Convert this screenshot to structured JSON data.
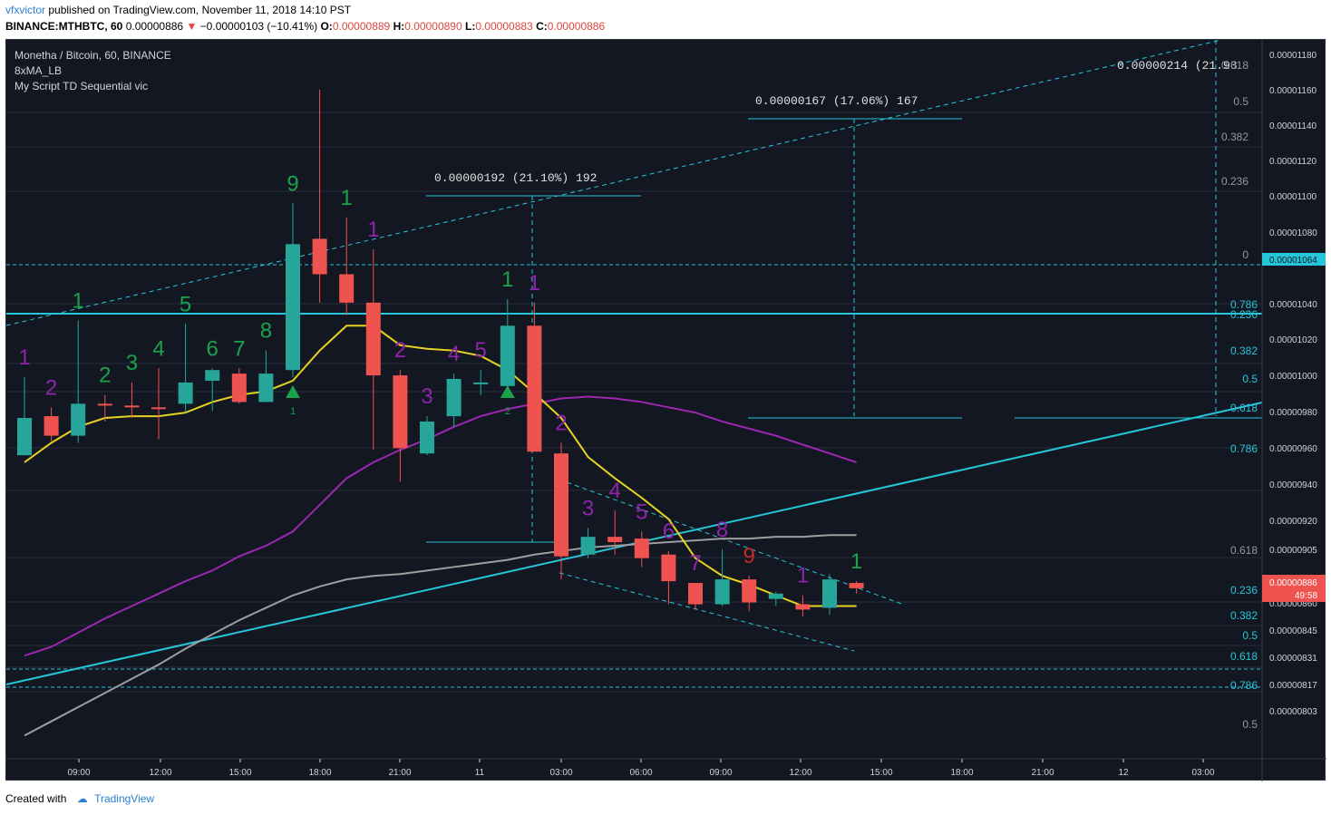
{
  "header": {
    "author": "vfxvictor",
    "published_text": "published on TradingView.com, November 11, 2018 14:10 PST",
    "symbol_line": "BINANCE:MTHBTC, 60",
    "last_price": "0.00000886",
    "change": "−0.00000103 (−10.41%)",
    "open_label": "O:",
    "open": "0.00000889",
    "high_label": "H:",
    "high": "0.00000890",
    "low_label": "L:",
    "low": "0.00000883",
    "close_label": "C:",
    "close": "0.00000886"
  },
  "legend": {
    "title": "Monetha / Bitcoin, 60, BINANCE",
    "indicator1": "8xMA_LB",
    "indicator2": "My Script TD Sequential vic"
  },
  "footer": {
    "created_with": "Created with",
    "brand": "TradingView"
  },
  "colors": {
    "background": "#131722",
    "up": "#26a69a",
    "down": "#ef5350",
    "cyan": "#26c6da",
    "ma_yellow": "#e6d321",
    "ma_purple": "#9c27b0",
    "ma_gray": "#9e9e9e",
    "td_green": "#1aa34a",
    "td_purple": "#8e24aa",
    "td_red": "#c62828"
  },
  "chart_data": {
    "type": "candlestick",
    "timeframe": "60",
    "x_tick_labels": [
      "09:00",
      "12:00",
      "15:00",
      "18:00",
      "21:00",
      "11",
      "03:00",
      "06:00",
      "09:00",
      "12:00",
      "15:00",
      "18:00",
      "21:00",
      "12",
      "03:00"
    ],
    "y_tick_labels": [
      "0.00001180",
      "0.00001160",
      "0.00001140",
      "0.00001120",
      "0.00001100",
      "0.00001080",
      "0.00001064",
      "0.00001040",
      "0.00001020",
      "0.00001000",
      "0.00000980",
      "0.00000960",
      "0.00000940",
      "0.00000920",
      "0.00000905",
      "0.00000886",
      "0.00000860",
      "0.00000845",
      "0.00000831",
      "0.00000817",
      "0.00000803"
    ],
    "ylim": [
      7.95e-06,
      1.19e-05
    ],
    "price_label": "0.00000886",
    "countdown": "49:58",
    "level_label": "0.00001064",
    "candles": [
      {
        "o": 9.61e-06,
        "h": 1.005e-05,
        "l": 9.61e-06,
        "c": 9.82e-06
      },
      {
        "o": 9.83e-06,
        "h": 9.88e-06,
        "l": 9.69e-06,
        "c": 9.72e-06
      },
      {
        "o": 9.72e-06,
        "h": 1.037e-05,
        "l": 9.68e-06,
        "c": 9.9e-06
      },
      {
        "o": 9.9e-06,
        "h": 9.95e-06,
        "l": 9.8e-06,
        "c": 9.89e-06
      },
      {
        "o": 9.89e-06,
        "h": 1.002e-05,
        "l": 9.82e-06,
        "c": 9.88e-06
      },
      {
        "o": 9.88e-06,
        "h": 1.01e-05,
        "l": 9.7e-06,
        "c": 9.87e-06
      },
      {
        "o": 9.9e-06,
        "h": 1.035e-05,
        "l": 9.85e-06,
        "c": 1.002e-05
      },
      {
        "o": 1.003e-05,
        "h": 1.01e-05,
        "l": 9.86e-06,
        "c": 1.009e-05
      },
      {
        "o": 1.007e-05,
        "h": 1.01e-05,
        "l": 9.9e-06,
        "c": 9.91e-06
      },
      {
        "o": 9.91e-06,
        "h": 1.02e-05,
        "l": 9.91e-06,
        "c": 1.007e-05
      },
      {
        "o": 1.009e-05,
        "h": 1.103e-05,
        "l": 1.005e-05,
        "c": 1.08e-05
      },
      {
        "o": 1.083e-05,
        "h": 1.167e-05,
        "l": 1.047e-05,
        "c": 1.063e-05
      },
      {
        "o": 1.063e-05,
        "h": 1.095e-05,
        "l": 1.04e-05,
        "c": 1.047e-05
      },
      {
        "o": 1.047e-05,
        "h": 1.077e-05,
        "l": 9.64e-06,
        "c": 1.006e-05
      },
      {
        "o": 1.006e-05,
        "h": 1.009e-05,
        "l": 9.46e-06,
        "c": 9.65e-06
      },
      {
        "o": 9.62e-06,
        "h": 9.83e-06,
        "l": 9.61e-06,
        "c": 9.8e-06
      },
      {
        "o": 9.83e-06,
        "h": 1.007e-05,
        "l": 9.77e-06,
        "c": 1.004e-05
      },
      {
        "o": 1.002e-05,
        "h": 1.009e-05,
        "l": 9.95e-06,
        "c": 1.002e-05
      },
      {
        "o": 1e-05,
        "h": 1.049e-05,
        "l": 9.98e-06,
        "c": 1.034e-05
      },
      {
        "o": 1.034e-05,
        "h": 1.047e-05,
        "l": 9.63e-06,
        "c": 9.63e-06
      },
      {
        "o": 9.62e-06,
        "h": 9.68e-06,
        "l": 8.91e-06,
        "c": 9.04e-06
      },
      {
        "o": 9.05e-06,
        "h": 9.2e-06,
        "l": 9.03e-06,
        "c": 9.15e-06
      },
      {
        "o": 9.15e-06,
        "h": 9.3e-06,
        "l": 9.05e-06,
        "c": 9.12e-06
      },
      {
        "o": 9.14e-06,
        "h": 9.18e-06,
        "l": 8.98e-06,
        "c": 9.03e-06
      },
      {
        "o": 9.05e-06,
        "h": 9.07e-06,
        "l": 8.77e-06,
        "c": 8.9e-06
      },
      {
        "o": 8.89e-06,
        "h": 8.89e-06,
        "l": 8.74e-06,
        "c": 8.77e-06
      },
      {
        "o": 8.77e-06,
        "h": 9.08e-06,
        "l": 8.76e-06,
        "c": 8.91e-06
      },
      {
        "o": 8.91e-06,
        "h": 8.93e-06,
        "l": 8.73e-06,
        "c": 8.78e-06
      },
      {
        "o": 8.8e-06,
        "h": 8.84e-06,
        "l": 8.76e-06,
        "c": 8.83e-06
      },
      {
        "o": 8.77e-06,
        "h": 8.82e-06,
        "l": 8.7e-06,
        "c": 8.74e-06
      },
      {
        "o": 8.75e-06,
        "h": 8.94e-06,
        "l": 8.71e-06,
        "c": 8.91e-06
      },
      {
        "o": 8.89e-06,
        "h": 8.9e-06,
        "l": 8.83e-06,
        "c": 8.86e-06
      }
    ],
    "ma_yellow": [
      9.57e-06,
      9.68e-06,
      9.77e-06,
      9.82e-06,
      9.83e-06,
      9.83e-06,
      9.85e-06,
      9.91e-06,
      9.95e-06,
      9.97e-06,
      1.003e-05,
      1.02e-05,
      1.034e-05,
      1.034e-05,
      1.023e-05,
      1.021e-05,
      1.02e-05,
      1.017e-05,
      1.009e-05,
      9.96e-06,
      9.82e-06,
      9.6e-06,
      9.48e-06,
      9.37e-06,
      9.25e-06,
      9.03e-06,
      8.93e-06,
      8.88e-06,
      8.82e-06,
      8.76e-06,
      8.76e-06,
      8.76e-06
    ],
    "ma_purple": [
      8.48e-06,
      8.53e-06,
      8.61e-06,
      8.69e-06,
      8.76e-06,
      8.83e-06,
      8.9e-06,
      8.96e-06,
      9.04e-06,
      9.1e-06,
      9.18e-06,
      9.33e-06,
      9.48e-06,
      9.57e-06,
      9.64e-06,
      9.7e-06,
      9.77e-06,
      9.83e-06,
      9.87e-06,
      9.9e-06,
      9.93e-06,
      9.94e-06,
      9.93e-06,
      9.91e-06,
      9.88e-06,
      9.85e-06,
      9.8e-06,
      9.76e-06,
      9.72e-06,
      9.67e-06,
      9.62e-06,
      9.57e-06
    ],
    "ma_gray": [
      8.03e-06,
      8.11e-06,
      8.19e-06,
      8.27e-06,
      8.35e-06,
      8.43e-06,
      8.52e-06,
      8.6e-06,
      8.68e-06,
      8.75e-06,
      8.82e-06,
      8.87e-06,
      8.91e-06,
      8.93e-06,
      8.94e-06,
      8.96e-06,
      8.98e-06,
      9e-06,
      9.02e-06,
      9.05e-06,
      9.07e-06,
      9.09e-06,
      9.1e-06,
      9.11e-06,
      9.12e-06,
      9.13e-06,
      9.14e-06,
      9.14e-06,
      9.15e-06,
      9.15e-06,
      9.16e-06,
      9.16e-06
    ],
    "td_counts": [
      {
        "i": 0,
        "label": "1",
        "color": "purple",
        "pos": "above"
      },
      {
        "i": 1,
        "label": "2",
        "color": "purple",
        "pos": "above"
      },
      {
        "i": 2,
        "label": "1",
        "color": "green",
        "pos": "above"
      },
      {
        "i": 3,
        "label": "2",
        "color": "green",
        "pos": "above"
      },
      {
        "i": 4,
        "label": "3",
        "color": "green",
        "pos": "above"
      },
      {
        "i": 5,
        "label": "4",
        "color": "green",
        "pos": "above"
      },
      {
        "i": 6,
        "label": "5",
        "color": "green",
        "pos": "above"
      },
      {
        "i": 7,
        "label": "6",
        "color": "green",
        "pos": "above"
      },
      {
        "i": 8,
        "label": "7",
        "color": "green",
        "pos": "above"
      },
      {
        "i": 9,
        "label": "8",
        "color": "green",
        "pos": "above"
      },
      {
        "i": 10,
        "label": "9",
        "color": "green",
        "pos": "above"
      },
      {
        "i": 12,
        "label": "1",
        "color": "green",
        "pos": "above"
      },
      {
        "i": 13,
        "label": "1",
        "color": "purple",
        "pos": "above"
      },
      {
        "i": 14,
        "label": "2",
        "color": "purple",
        "pos": "above"
      },
      {
        "i": 15,
        "label": "3",
        "color": "purple",
        "pos": "above"
      },
      {
        "i": 16,
        "label": "4",
        "color": "purple",
        "pos": "above"
      },
      {
        "i": 17,
        "label": "5",
        "color": "purple",
        "pos": "above"
      },
      {
        "i": 18,
        "label": "1",
        "color": "green",
        "pos": "above"
      },
      {
        "i": 19,
        "label": "1",
        "color": "purple",
        "pos": "above"
      },
      {
        "i": 20,
        "label": "2",
        "color": "purple",
        "pos": "above"
      },
      {
        "i": 21,
        "label": "3",
        "color": "purple",
        "pos": "above"
      },
      {
        "i": 22,
        "label": "4",
        "color": "purple",
        "pos": "above"
      },
      {
        "i": 23,
        "label": "5",
        "color": "purple",
        "pos": "above"
      },
      {
        "i": 24,
        "label": "6",
        "color": "purple",
        "pos": "above"
      },
      {
        "i": 25,
        "label": "7",
        "color": "purple",
        "pos": "above"
      },
      {
        "i": 26,
        "label": "8",
        "color": "purple",
        "pos": "above"
      },
      {
        "i": 27,
        "label": "9",
        "color": "red",
        "pos": "above"
      },
      {
        "i": 29,
        "label": "1",
        "color": "purple",
        "pos": "above"
      },
      {
        "i": 31,
        "label": "1",
        "color": "green",
        "pos": "above"
      }
    ],
    "setup_markers": [
      {
        "i": 10,
        "label": "1"
      },
      {
        "i": 18,
        "label": "2"
      }
    ],
    "measurements": [
      {
        "text": "0.00000192 (21.10%) 192"
      },
      {
        "text": "0.00000167 (17.06%) 167"
      },
      {
        "text": "0.00000214 (21.93"
      }
    ],
    "fib_labels_top": [
      "0.618",
      "0.5",
      "0.382",
      "0.236",
      "0"
    ],
    "fib_labels_mid": [
      "0.786",
      "0.236",
      "0.382",
      "0.5",
      "0.618",
      "0.786"
    ],
    "fib_labels_low": [
      "0.618",
      "0.236",
      "0.382",
      "0.5",
      "0.618",
      "0.786",
      "0.5"
    ]
  }
}
